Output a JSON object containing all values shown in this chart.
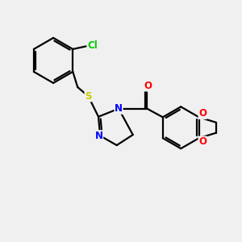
{
  "bg_color": "#f0f0f0",
  "bond_color": "#000000",
  "bond_width": 1.6,
  "atom_colors": {
    "Cl": "#00cc00",
    "S": "#cccc00",
    "N": "#0000ff",
    "O": "#ff0000"
  },
  "figsize": [
    3.0,
    3.0
  ],
  "dpi": 100
}
